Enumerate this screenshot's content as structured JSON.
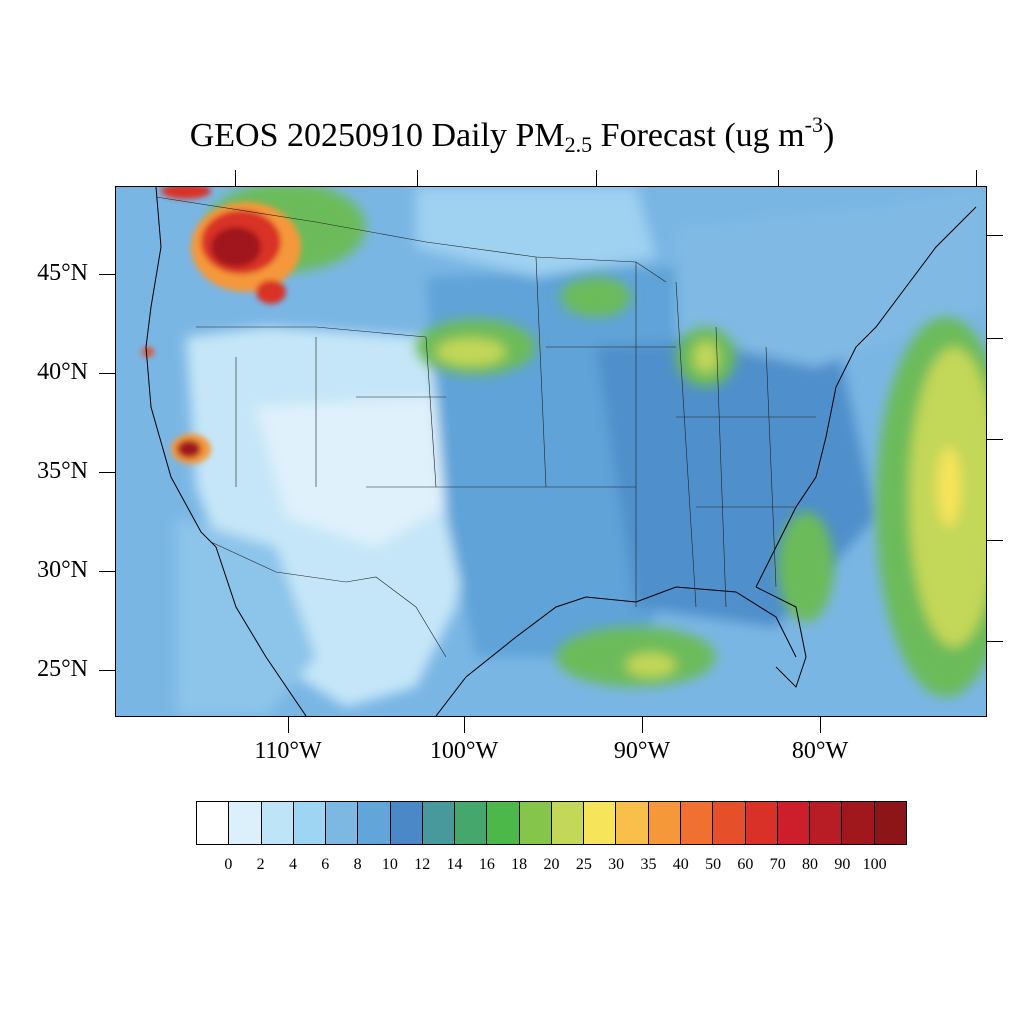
{
  "title": {
    "main": "GEOS 20250910 Daily PM",
    "sub": "2.5",
    "tail": " Forecast (ug m",
    "sup": "-3",
    "close": ")"
  },
  "map": {
    "projection": "lambert-conformal",
    "region": "Contiguous United States",
    "lon_labels": [
      "110°W",
      "100°W",
      "90°W",
      "80°W"
    ],
    "lat_labels": [
      "45°N",
      "40°N",
      "35°N",
      "30°N",
      "25°N"
    ],
    "hotspots": [
      {
        "area": "northern Idaho / western Montana",
        "level": "90-100"
      },
      {
        "area": "central California (Sierra Nevada)",
        "level": "80-100"
      },
      {
        "area": "northern California coast",
        "level": "40-60"
      },
      {
        "area": "Atlantic offshore plume",
        "level": "25-30"
      },
      {
        "area": "Gulf of Mexico",
        "level": "20-25"
      },
      {
        "area": "Nebraska / Kansas",
        "level": "18-25"
      },
      {
        "area": "Lower Michigan",
        "level": "18-25"
      }
    ]
  },
  "colorbar": {
    "labels": [
      "0",
      "2",
      "4",
      "6",
      "8",
      "10",
      "12",
      "14",
      "16",
      "18",
      "20",
      "25",
      "30",
      "35",
      "40",
      "50",
      "60",
      "70",
      "80",
      "90",
      "100"
    ],
    "colors": [
      "#ffffff",
      "#dcf0fb",
      "#bde4f7",
      "#9dd5f3",
      "#7db8e3",
      "#62a5d8",
      "#4a88c7",
      "#47999b",
      "#45a76c",
      "#4cb84a",
      "#86c54c",
      "#c3d758",
      "#f6e45a",
      "#f8c04a",
      "#f5983a",
      "#ef7030",
      "#e5502a",
      "#d93027",
      "#cd1f2b",
      "#b81c24",
      "#a0181c",
      "#8c1617"
    ]
  }
}
